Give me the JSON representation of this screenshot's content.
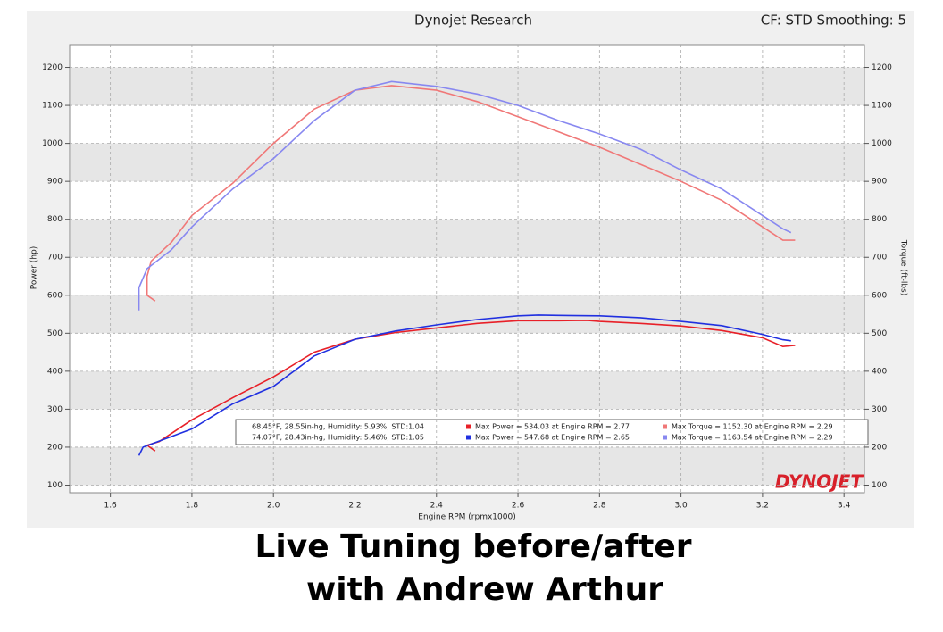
{
  "chart_data": {
    "type": "line",
    "title": "Dynojet Research",
    "subtitle": "CF: STD Smoothing: 5",
    "x_label": "Engine RPM (rpmx1000)",
    "y_label": "Power (hp)",
    "y2_label": "Torque (ft-lbs)",
    "logo": "DYNOJET",
    "xlim": [
      1.5,
      3.45
    ],
    "xticks": [
      1.6,
      1.8,
      {
        "value": 2,
        "label": "2.0"
      },
      2.2,
      2.4,
      2.6,
      2.8,
      {
        "value": 3,
        "label": "3.0"
      },
      3.2,
      3.4
    ],
    "ylim": [
      80,
      1260
    ],
    "yticks": [
      100,
      200,
      300,
      400,
      500,
      600,
      700,
      800,
      900,
      1000,
      1100,
      1200
    ],
    "y2lim": [
      80,
      1260
    ],
    "y2ticks": [
      100,
      200,
      300,
      400,
      500,
      600,
      700,
      800,
      900,
      1000,
      1100,
      1200
    ],
    "grid": true,
    "legend_conditions": [
      "68.45°F, 28.55in-hg, Humidity: 5.93%, STD:1.04",
      "74.07°F, 28.43in-hg, Humidity: 5.46%, STD:1.05"
    ],
    "series": [
      {
        "name": "Max Power = 534.03 at Engine RPM = 2.77",
        "color": "#e82028",
        "x": [
          1.71,
          1.69,
          1.72,
          1.8,
          1.9,
          2.0,
          2.1,
          2.2,
          2.3,
          2.4,
          2.5,
          2.6,
          2.7,
          2.77,
          2.8,
          2.9,
          3.0,
          3.1,
          3.2,
          3.25,
          3.28
        ],
        "values": [
          190,
          205,
          215,
          272,
          330,
          385,
          450,
          484,
          502,
          514,
          526,
          533,
          533,
          534,
          531,
          526,
          519,
          507,
          488,
          465,
          468
        ]
      },
      {
        "name": "Max Power = 547.68 at Engine RPM = 2.65",
        "color": "#2030e0",
        "x": [
          1.67,
          1.68,
          1.8,
          1.9,
          2.0,
          2.1,
          2.2,
          2.3,
          2.4,
          2.5,
          2.6,
          2.65,
          2.7,
          2.8,
          2.9,
          3.0,
          3.1,
          3.2,
          3.25,
          3.27
        ],
        "values": [
          178,
          200,
          248,
          314,
          360,
          440,
          484,
          506,
          522,
          536,
          546,
          548,
          547,
          546,
          541,
          531,
          520,
          497,
          483,
          480
        ]
      },
      {
        "name": "Max Torque = 1152.30 at Engine RPM = 2.29",
        "color": "#f07878",
        "axis": "y2",
        "x": [
          1.71,
          1.69,
          1.69,
          1.7,
          1.75,
          1.8,
          1.9,
          2.0,
          2.1,
          2.2,
          2.29,
          2.4,
          2.5,
          2.6,
          2.7,
          2.8,
          2.9,
          3.0,
          3.1,
          3.2,
          3.25,
          3.28
        ],
        "values": [
          585,
          600,
          650,
          690,
          740,
          810,
          895,
          1000,
          1090,
          1140,
          1152,
          1140,
          1110,
          1070,
          1030,
          990,
          945,
          900,
          850,
          780,
          745,
          745
        ]
      },
      {
        "name": "Max Torque = 1163.54 at Engine RPM = 2.29",
        "color": "#8888f0",
        "axis": "y2",
        "x": [
          1.67,
          1.67,
          1.69,
          1.75,
          1.8,
          1.9,
          2.0,
          2.1,
          2.2,
          2.29,
          2.4,
          2.5,
          2.6,
          2.7,
          2.8,
          2.9,
          3.0,
          3.1,
          3.2,
          3.25,
          3.27
        ],
        "values": [
          560,
          620,
          670,
          720,
          780,
          880,
          960,
          1060,
          1140,
          1163,
          1150,
          1130,
          1100,
          1060,
          1025,
          985,
          930,
          880,
          810,
          775,
          765
        ]
      }
    ]
  },
  "caption": [
    "Live Tuning before/after",
    "with Andrew Arthur"
  ]
}
